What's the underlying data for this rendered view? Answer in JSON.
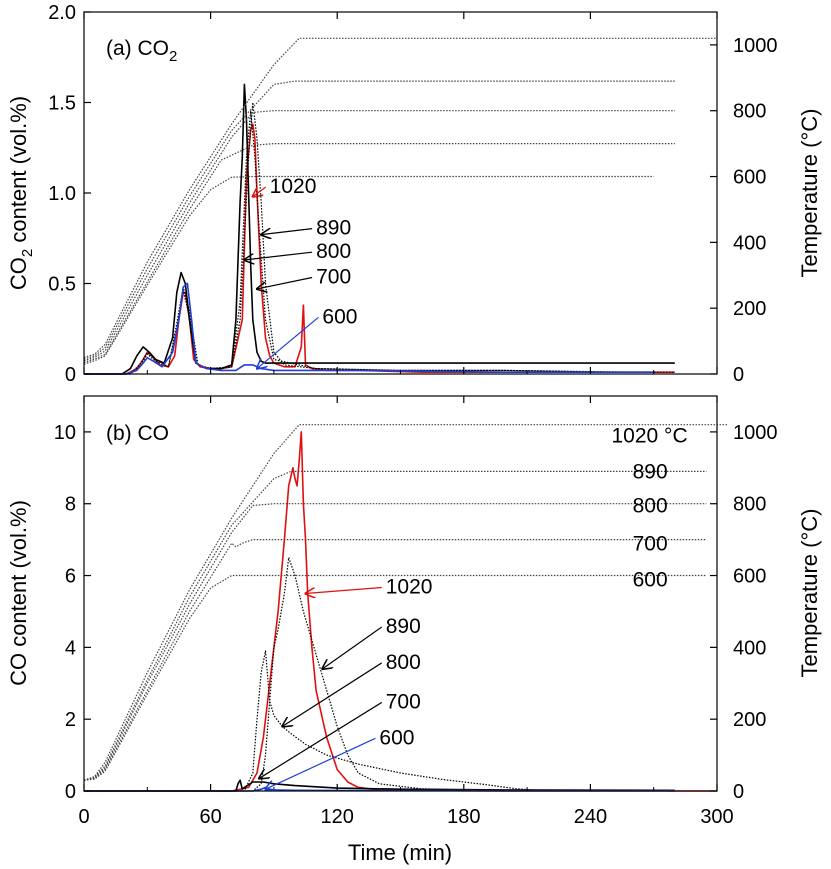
{
  "colors": {
    "black": "#000000",
    "red": "#e01010",
    "blue": "#1f3fd8",
    "gray": "#444444"
  },
  "chart_data": [
    {
      "type": "line",
      "panel_label": "(a) CO",
      "panel_label_sub": "2",
      "xlabel": "Time (min)",
      "ylabel": "CO",
      "ylabel_sub": "2",
      "ylabel_rest": " content (vol.%)",
      "y2label": "Temperature (°C)",
      "xlim": [
        0,
        300
      ],
      "ylim": [
        0,
        2.0
      ],
      "y2lim": [
        0,
        1100
      ],
      "x_ticks": [
        0,
        60,
        120,
        180,
        240,
        300
      ],
      "y_ticks": [
        "0",
        "0.5",
        "1.0",
        "1.5",
        "2.0"
      ],
      "y_tick_values": [
        0,
        0.5,
        1.0,
        1.5,
        2.0
      ],
      "y2_ticks": [
        "0",
        "200",
        "400",
        "600",
        "800",
        "1000"
      ],
      "y2_tick_values": [
        0,
        200,
        400,
        600,
        800,
        1000
      ],
      "annotations": [
        {
          "text": "1020",
          "x": 88,
          "y": 1.0,
          "color": "red",
          "arrow_to": [
            80,
            0.98
          ]
        },
        {
          "text": "890",
          "x": 110,
          "y": 0.77,
          "color": "black",
          "arrow_to": [
            84,
            0.77
          ]
        },
        {
          "text": "800",
          "x": 110,
          "y": 0.64,
          "color": "black",
          "arrow_to": [
            76,
            0.63
          ]
        },
        {
          "text": "700",
          "x": 110,
          "y": 0.5,
          "color": "black",
          "arrow_to": [
            82,
            0.47
          ]
        },
        {
          "text": "600",
          "x": 113,
          "y": 0.28,
          "color": "blue",
          "arrow_to": [
            82,
            0.03
          ]
        }
      ],
      "series": [
        {
          "label": "1020",
          "color": "red",
          "axis": "left",
          "x": [
            0,
            20,
            25,
            28,
            30,
            33,
            36,
            40,
            43,
            45,
            47,
            48,
            50,
            52,
            55,
            60,
            65,
            70,
            75,
            77,
            79,
            80,
            81,
            82,
            84,
            86,
            88,
            90,
            95,
            100,
            103,
            104,
            105,
            108,
            115,
            130,
            160,
            200,
            240,
            270,
            280
          ],
          "y": [
            0,
            0,
            0.03,
            0.08,
            0.12,
            0.09,
            0.05,
            0.04,
            0.1,
            0.3,
            0.45,
            0.45,
            0.3,
            0.08,
            0.04,
            0.03,
            0.03,
            0.04,
            0.3,
            1.1,
            1.35,
            1.38,
            1.3,
            1.0,
            0.5,
            0.2,
            0.1,
            0.06,
            0.04,
            0.04,
            0.15,
            0.38,
            0.05,
            0.03,
            0.02,
            0.02,
            0.01,
            0.01,
            0.01,
            0.01,
            0.01
          ]
        },
        {
          "label": "890",
          "color": "black",
          "axis": "left",
          "style": "dotted",
          "x": [
            0,
            22,
            27,
            30,
            34,
            40,
            44,
            47,
            50,
            54,
            60,
            70,
            74,
            78,
            80,
            82,
            84,
            86,
            90,
            95,
            110,
            150,
            200,
            260,
            280
          ],
          "y": [
            0,
            0,
            0.06,
            0.12,
            0.08,
            0.04,
            0.28,
            0.48,
            0.35,
            0.05,
            0.03,
            0.04,
            0.3,
            1.2,
            1.5,
            1.3,
            0.95,
            0.5,
            0.12,
            0.05,
            0.03,
            0.02,
            0.02,
            0.01,
            0.01
          ]
        },
        {
          "label": "800",
          "color": "black",
          "axis": "left",
          "x": [
            0,
            18,
            22,
            25,
            28,
            31,
            34,
            38,
            42,
            44,
            46,
            48,
            50,
            53,
            58,
            62,
            65,
            70,
            72,
            74,
            75,
            76,
            77,
            78,
            79,
            80,
            82,
            84,
            86,
            90,
            100,
            120,
            150,
            200,
            250,
            280
          ],
          "y": [
            0,
            0,
            0.03,
            0.1,
            0.15,
            0.12,
            0.08,
            0.06,
            0.2,
            0.45,
            0.56,
            0.5,
            0.3,
            0.06,
            0.03,
            0.03,
            0.03,
            0.05,
            0.3,
            0.95,
            1.2,
            1.6,
            1.4,
            1.0,
            0.6,
            0.3,
            0.12,
            0.07,
            0.06,
            0.06,
            0.06,
            0.06,
            0.06,
            0.06,
            0.06,
            0.06
          ]
        },
        {
          "label": "700",
          "color": "black",
          "axis": "left",
          "style": "dotted",
          "x": [
            0,
            22,
            27,
            30,
            34,
            40,
            44,
            47,
            50,
            54,
            60,
            70,
            74,
            77,
            79,
            81,
            83,
            86,
            90,
            110,
            150,
            200,
            250
          ],
          "y": [
            0,
            0,
            0.05,
            0.11,
            0.07,
            0.04,
            0.25,
            0.46,
            0.32,
            0.05,
            0.03,
            0.04,
            0.4,
            1.2,
            1.45,
            1.2,
            0.8,
            0.3,
            0.08,
            0.03,
            0.02,
            0.02,
            0.01
          ]
        },
        {
          "label": "600",
          "color": "blue",
          "axis": "left",
          "x": [
            0,
            20,
            25,
            28,
            30,
            33,
            37,
            42,
            45,
            47,
            49,
            51,
            53,
            58,
            65,
            72,
            76,
            80,
            84,
            90,
            100,
            130,
            200,
            270
          ],
          "y": [
            0,
            0,
            0.02,
            0.06,
            0.09,
            0.07,
            0.04,
            0.12,
            0.3,
            0.48,
            0.5,
            0.3,
            0.06,
            0.03,
            0.02,
            0.02,
            0.05,
            0.05,
            0.03,
            0.02,
            0.02,
            0.02,
            0.01,
            0.01
          ]
        },
        {
          "label": "T1020",
          "color": "gray",
          "axis": "right",
          "style": "dotted",
          "x": [
            0,
            5,
            10,
            30,
            50,
            70,
            90,
            102,
            110,
            200,
            300
          ],
          "y": [
            50,
            60,
            90,
            340,
            560,
            760,
            940,
            1020,
            1020,
            1020,
            1020
          ]
        },
        {
          "label": "T890",
          "color": "gray",
          "axis": "right",
          "style": "dotted",
          "x": [
            0,
            5,
            10,
            30,
            50,
            70,
            90,
            100,
            200,
            280
          ],
          "y": [
            45,
            55,
            80,
            320,
            540,
            740,
            880,
            890,
            890,
            890
          ]
        },
        {
          "label": "T800",
          "color": "gray",
          "axis": "right",
          "style": "dotted",
          "x": [
            0,
            5,
            10,
            30,
            50,
            70,
            80,
            90,
            200,
            280
          ],
          "y": [
            40,
            50,
            70,
            300,
            520,
            720,
            795,
            800,
            800,
            800
          ]
        },
        {
          "label": "T700",
          "color": "gray",
          "axis": "right",
          "style": "dotted",
          "x": [
            0,
            5,
            10,
            30,
            50,
            65,
            80,
            90,
            200,
            280
          ],
          "y": [
            35,
            45,
            60,
            280,
            500,
            650,
            695,
            700,
            700,
            700
          ]
        },
        {
          "label": "T600",
          "color": "gray",
          "axis": "right",
          "style": "dotted",
          "x": [
            0,
            5,
            10,
            30,
            50,
            60,
            70,
            80,
            200,
            270
          ],
          "y": [
            30,
            40,
            55,
            270,
            480,
            560,
            598,
            600,
            600,
            600
          ]
        }
      ]
    },
    {
      "type": "line",
      "panel_label": "(b) CO",
      "xlabel": "Time (min)",
      "ylabel": "CO content (vol.%)",
      "y2label": "Temperature (°C)",
      "xlim": [
        0,
        300
      ],
      "ylim": [
        0,
        11
      ],
      "y2lim": [
        0,
        1100
      ],
      "x_ticks": [
        0,
        60,
        120,
        180,
        240,
        300
      ],
      "y_ticks": [
        "0",
        "2",
        "4",
        "6",
        "8",
        "10"
      ],
      "y_tick_values": [
        0,
        2,
        4,
        6,
        8,
        10
      ],
      "y2_ticks": [
        "0",
        "200",
        "400",
        "600",
        "800",
        "1000"
      ],
      "y2_tick_values": [
        0,
        200,
        400,
        600,
        800,
        1000
      ],
      "temp_labels": [
        {
          "text": "1020 °C",
          "x": 250,
          "y": 970
        },
        {
          "text": "890",
          "x": 260,
          "y": 870
        },
        {
          "text": "800",
          "x": 260,
          "y": 775
        },
        {
          "text": "700",
          "x": 260,
          "y": 670
        },
        {
          "text": "600",
          "x": 260,
          "y": 570
        }
      ],
      "annotations": [
        {
          "text": "1020",
          "x": 143,
          "y": 5.5,
          "color": "red",
          "arrow_to": [
            105,
            5.5
          ]
        },
        {
          "text": "890",
          "x": 143,
          "y": 4.4,
          "color": "black",
          "arrow_to": [
            113,
            3.4
          ]
        },
        {
          "text": "800",
          "x": 143,
          "y": 3.4,
          "color": "black",
          "arrow_to": [
            94,
            1.8
          ]
        },
        {
          "text": "700",
          "x": 143,
          "y": 2.3,
          "color": "black",
          "arrow_to": [
            83,
            0.35
          ]
        },
        {
          "text": "600",
          "x": 140,
          "y": 1.3,
          "color": "blue",
          "arrow_to": [
            86,
            0.05
          ]
        }
      ],
      "series": [
        {
          "label": "1020",
          "color": "red",
          "axis": "left",
          "x": [
            0,
            70,
            78,
            82,
            85,
            88,
            90,
            92,
            95,
            97,
            99,
            100,
            101,
            102,
            103,
            104,
            105,
            106,
            108,
            110,
            115,
            120,
            125,
            130,
            140,
            160,
            200,
            300
          ],
          "y": [
            0,
            0,
            0.1,
            0.5,
            1.5,
            3.0,
            4.0,
            5.0,
            7.0,
            8.5,
            9.0,
            8.7,
            8.5,
            9.2,
            10.0,
            8.0,
            7.0,
            5.5,
            4.0,
            2.8,
            1.5,
            0.6,
            0.25,
            0.1,
            0.03,
            0.01,
            0,
            0
          ]
        },
        {
          "label": "890",
          "color": "black",
          "axis": "left",
          "style": "dotted",
          "x": [
            0,
            80,
            84,
            86,
            88,
            90,
            92,
            95,
            97,
            100,
            104,
            108,
            112,
            116,
            120,
            125,
            130,
            140,
            160,
            180,
            200,
            220,
            240,
            280
          ],
          "y": [
            0,
            0,
            0.2,
            1.0,
            2.5,
            4.0,
            4.5,
            5.5,
            6.5,
            6.0,
            5.0,
            4.2,
            3.4,
            2.6,
            1.8,
            1.0,
            0.5,
            0.2,
            0.06,
            0.03,
            0.02,
            0.01,
            0.01,
            0
          ]
        },
        {
          "label": "800",
          "color": "black",
          "axis": "left",
          "style": "dotted",
          "x": [
            0,
            76,
            80,
            82,
            84,
            86,
            88,
            90,
            94,
            98,
            105,
            115,
            130,
            150,
            170,
            190,
            205,
            215,
            260
          ],
          "y": [
            0,
            0,
            0.5,
            2.0,
            3.3,
            3.9,
            2.5,
            2.1,
            1.8,
            1.6,
            1.3,
            1.0,
            0.75,
            0.5,
            0.32,
            0.18,
            0.06,
            0.02,
            0.01
          ]
        },
        {
          "label": "700",
          "color": "black",
          "axis": "left",
          "x": [
            0,
            72,
            73,
            74,
            75,
            76,
            80,
            85,
            90,
            100,
            120,
            150,
            200,
            280
          ],
          "y": [
            0,
            0,
            0.2,
            0.3,
            0.05,
            0.1,
            0.25,
            0.25,
            0.2,
            0.15,
            0.08,
            0.05,
            0.03,
            0.02
          ]
        },
        {
          "label": "600",
          "color": "blue",
          "axis": "left",
          "x": [
            0,
            80,
            84,
            86,
            88,
            90,
            100,
            130,
            200,
            280
          ],
          "y": [
            0,
            0,
            0.05,
            0.1,
            0.05,
            0.03,
            0.02,
            0.01,
            0.01,
            0.01
          ]
        },
        {
          "label": "T1020",
          "color": "gray",
          "axis": "right",
          "style": "dotted",
          "x": [
            0,
            5,
            10,
            30,
            50,
            70,
            90,
            102,
            110,
            200,
            305
          ],
          "y": [
            30,
            40,
            80,
            330,
            560,
            760,
            940,
            1020,
            1020,
            1020,
            1020
          ]
        },
        {
          "label": "T890",
          "color": "gray",
          "axis": "right",
          "style": "dotted",
          "x": [
            0,
            5,
            10,
            30,
            50,
            70,
            90,
            98,
            200,
            295
          ],
          "y": [
            30,
            38,
            70,
            310,
            540,
            740,
            870,
            890,
            890,
            890
          ]
        },
        {
          "label": "T800",
          "color": "gray",
          "axis": "right",
          "style": "dotted",
          "x": [
            0,
            5,
            10,
            30,
            50,
            70,
            80,
            90,
            200,
            295
          ],
          "y": [
            30,
            36,
            65,
            300,
            520,
            720,
            795,
            800,
            800,
            800
          ]
        },
        {
          "label": "T700",
          "color": "gray",
          "axis": "right",
          "style": "dotted",
          "x": [
            0,
            5,
            10,
            30,
            50,
            70,
            72,
            75,
            80,
            90,
            200,
            295
          ],
          "y": [
            30,
            34,
            60,
            280,
            500,
            690,
            680,
            690,
            700,
            700,
            700,
            700
          ]
        },
        {
          "label": "T600",
          "color": "gray",
          "axis": "right",
          "style": "dotted",
          "x": [
            0,
            5,
            10,
            30,
            50,
            60,
            70,
            80,
            200,
            295
          ],
          "y": [
            30,
            33,
            55,
            270,
            480,
            565,
            600,
            600,
            600,
            600
          ]
        }
      ]
    }
  ]
}
